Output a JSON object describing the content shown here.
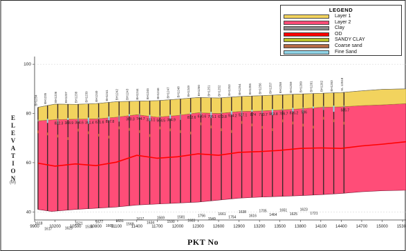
{
  "legend": {
    "title": "LEGEND",
    "items": [
      {
        "label": "Layer 1",
        "color": "#f2d35e"
      },
      {
        "label": "Layer 2",
        "color": "#ff4d78"
      },
      {
        "label": "Clay",
        "color": "#8a8a8a"
      },
      {
        "label": "OD",
        "color": "#ff0000"
      },
      {
        "label": "SANDY CLAY",
        "color": "#b9bf2a"
      },
      {
        "label": "Coarse sand",
        "color": "#b56a45"
      },
      {
        "label": "Fine Sand",
        "color": "#8fd3e6"
      }
    ]
  },
  "yaxis_label": "ELEVATION",
  "yaxis_unit": "(M)",
  "xaxis_label": "PKT No",
  "chart_data": {
    "type": "area",
    "x_ticks": [
      9900,
      10200,
      10500,
      10800,
      11100,
      11400,
      11700,
      12000,
      12300,
      12600,
      12900,
      13200,
      13500,
      13800,
      14100,
      14400,
      14700,
      15000,
      15300
    ],
    "y_ticks": [
      40,
      60,
      80,
      100
    ],
    "x_range": [
      9900,
      15350
    ],
    "y_range": [
      37,
      102
    ],
    "ground_surface": {
      "x": [
        9950,
        10200,
        10500,
        10800,
        11100,
        11400,
        11700,
        12000,
        12300,
        12600,
        12900,
        13200,
        13500,
        13800,
        14100,
        14400,
        14700,
        15000,
        15350
      ],
      "y": [
        82.5,
        83.8,
        83.7,
        84.0,
        84.8,
        85.0,
        85.2,
        85.8,
        86.5,
        86.3,
        86.9,
        87.2,
        87.6,
        87.9,
        88.2,
        88.5,
        89.2,
        89.8,
        90.0
      ]
    },
    "layer_boundary": {
      "x": [
        9950,
        10200,
        10500,
        10800,
        11100,
        11400,
        11700,
        12000,
        12300,
        12600,
        12900,
        13200,
        13500,
        13800,
        14100,
        14400,
        14700,
        15000,
        15350
      ],
      "y": [
        77.0,
        77.5,
        77.7,
        77.8,
        78.5,
        79.5,
        78.5,
        79.2,
        80.3,
        80.0,
        80.8,
        81.0,
        81.4,
        81.9,
        82.5,
        82.7,
        83.2,
        83.5,
        84.0
      ]
    },
    "bottom": {
      "x": [
        9950,
        10150,
        10500,
        10800,
        11100,
        11400,
        11700,
        12000,
        12300,
        12600,
        12900,
        13200,
        13500,
        13800,
        14100,
        14400,
        14700,
        15000,
        15350
      ],
      "y": [
        41.0,
        40.2,
        41.0,
        41.5,
        42.0,
        42.8,
        43.2,
        43.6,
        44.0,
        44.8,
        45.6,
        46.0,
        46.3,
        46.6,
        47.0,
        47.5,
        48.2,
        48.6,
        48.8
      ]
    },
    "od_line": {
      "x": [
        9950,
        10200,
        10500,
        10800,
        11100,
        11400,
        11700,
        12000,
        12300,
        12600,
        12900,
        13200,
        13500,
        13800,
        14100,
        14400,
        14700,
        15000,
        15350
      ],
      "y": [
        59.8,
        58.6,
        59.5,
        58.8,
        60.2,
        63.0,
        61.8,
        62.4,
        63.6,
        63.0,
        64.2,
        64.5,
        65.0,
        65.8,
        66.0,
        65.8,
        66.8,
        67.5,
        68.5
      ]
    },
    "boreholes": [
      {
        "name": "BH1234",
        "x": 9950,
        "top_label": "",
        "bottom_label": "1618"
      },
      {
        "name": "BH1235",
        "x": 10090,
        "top_label": "",
        "bottom_label": "1617"
      },
      {
        "name": "BH1236",
        "x": 10240,
        "top_label": "832.3",
        "bottom_label": ""
      },
      {
        "name": "BH1237",
        "x": 10390,
        "top_label": "388.9",
        "bottom_label": "1623"
      },
      {
        "name": "BH1238",
        "x": 10540,
        "top_label": "304.6",
        "bottom_label": "1521"
      },
      {
        "name": "BH1239",
        "x": 10690,
        "top_label": "361.4",
        "bottom_label": "1539"
      },
      {
        "name": "BH1240",
        "x": 10840,
        "top_label": "671.6",
        "bottom_label": "1677"
      },
      {
        "name": "BH1241",
        "x": 10990,
        "top_label": "897.8",
        "bottom_label": "1665"
      },
      {
        "name": "BH1242",
        "x": 11140,
        "top_label": "",
        "bottom_label": "1631"
      },
      {
        "name": "BH1243",
        "x": 11290,
        "top_label": "300.3",
        "bottom_label": "1569"
      },
      {
        "name": "BH1244",
        "x": 11440,
        "top_label": "744.7",
        "bottom_label": "1617"
      },
      {
        "name": "BH1245",
        "x": 11590,
        "top_label": "333.1",
        "bottom_label": "1634"
      },
      {
        "name": "BH1246",
        "x": 11740,
        "top_label": "564.5",
        "bottom_label": "1569"
      },
      {
        "name": "BH1247",
        "x": 11890,
        "top_label": "384.9",
        "bottom_label": "1590"
      },
      {
        "name": "BH1248",
        "x": 12040,
        "top_label": "",
        "bottom_label": "1581"
      },
      {
        "name": "BH1249",
        "x": 12190,
        "top_label": "812.6",
        "bottom_label": "1603"
      },
      {
        "name": "BH1250",
        "x": 12340,
        "top_label": "670.6",
        "bottom_label": "1756"
      },
      {
        "name": "BH1251",
        "x": 12490,
        "top_label": "795.1",
        "bottom_label": "1549"
      },
      {
        "name": "BH1252",
        "x": 12640,
        "top_label": "673.8",
        "bottom_label": "1661"
      },
      {
        "name": "BH1253",
        "x": 12790,
        "top_label": "974.2",
        "bottom_label": "1754"
      },
      {
        "name": "BH1254",
        "x": 12940,
        "top_label": "527.1",
        "bottom_label": "1638"
      },
      {
        "name": "BH1255",
        "x": 13090,
        "top_label": "874",
        "bottom_label": "1616"
      },
      {
        "name": "BH1256",
        "x": 13240,
        "top_label": "773.7",
        "bottom_label": "1705"
      },
      {
        "name": "BH1257",
        "x": 13390,
        "top_label": "963.8",
        "bottom_label": "1464"
      },
      {
        "name": "BH1258",
        "x": 13540,
        "top_label": "786.7",
        "bottom_label": "1651"
      },
      {
        "name": "BH1259",
        "x": 13690,
        "top_label": "875.2",
        "bottom_label": "1625"
      },
      {
        "name": "BH1260",
        "x": 13840,
        "top_label": "586",
        "bottom_label": "1623"
      },
      {
        "name": "BH1261",
        "x": 13990,
        "top_label": "",
        "bottom_label": "1721"
      },
      {
        "name": "BH1262",
        "x": 14140,
        "top_label": "",
        "bottom_label": ""
      },
      {
        "name": "BH1263",
        "x": 14290,
        "top_label": "",
        "bottom_label": ""
      },
      {
        "name": "VL 12518",
        "x": 14440,
        "top_label": "585.7",
        "bottom_label": ""
      }
    ]
  }
}
